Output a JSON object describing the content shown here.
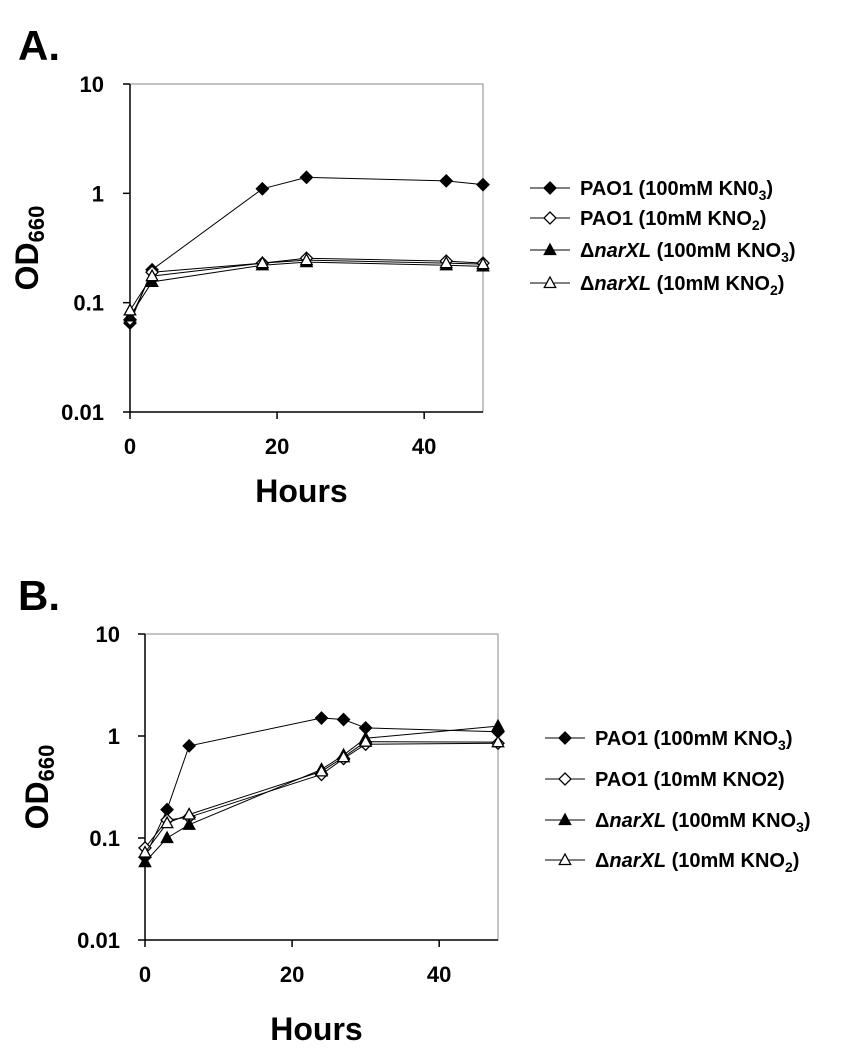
{
  "chart_data": [
    {
      "panel_label": "A.",
      "type": "line",
      "ylabel": "OD",
      "ylabel_sub": "660",
      "xlabel": "Hours",
      "yscale": "log",
      "ylim": [
        0.01,
        10
      ],
      "xlim": [
        0,
        48
      ],
      "yticks": [
        "10",
        "1",
        "0.1",
        "0.01"
      ],
      "xticks": [
        "0",
        "20",
        "40"
      ],
      "grid": false,
      "legend_position": "right",
      "series": [
        {
          "name": "PAO1 (100mM KN0",
          "name_sub": "3",
          "name_tail": ")",
          "italic_part": "",
          "marker": "diamond-filled",
          "x": [
            0,
            3,
            18,
            24,
            43,
            48
          ],
          "y": [
            0.065,
            0.2,
            1.1,
            1.4,
            1.3,
            1.2
          ]
        },
        {
          "name": "PAO1 (10mM KNO",
          "name_sub": "2",
          "name_tail": ")",
          "italic_part": "",
          "marker": "diamond-open",
          "x": [
            0,
            3,
            18,
            24,
            43,
            48
          ],
          "y": [
            0.07,
            0.19,
            0.23,
            0.255,
            0.24,
            0.23
          ]
        },
        {
          "name": "Δ",
          "italic_part": "narXL",
          "name_rest": " (100mM KNO",
          "name_sub": "3",
          "name_tail": ")",
          "marker": "triangle-filled",
          "x": [
            0,
            3,
            18,
            24,
            43,
            48
          ],
          "y": [
            0.075,
            0.155,
            0.22,
            0.235,
            0.22,
            0.215
          ]
        },
        {
          "name": "Δ",
          "italic_part": "narXL",
          "name_rest": " (10mM KNO",
          "name_sub": "2",
          "name_tail": ")",
          "marker": "triangle-open",
          "x": [
            0,
            3,
            18,
            24,
            43,
            48
          ],
          "y": [
            0.085,
            0.175,
            0.23,
            0.245,
            0.23,
            0.225
          ]
        }
      ]
    },
    {
      "panel_label": "B.",
      "type": "line",
      "ylabel": "OD",
      "ylabel_sub": "660",
      "xlabel": "Hours",
      "yscale": "log",
      "ylim": [
        0.01,
        10
      ],
      "xlim": [
        0,
        48
      ],
      "yticks": [
        "10",
        "1",
        "0.1",
        "0.01"
      ],
      "xticks": [
        "0",
        "20",
        "40"
      ],
      "grid": false,
      "legend_position": "right",
      "series": [
        {
          "name": "PAO1 (100mM KNO",
          "name_sub": "3",
          "name_tail": ")",
          "italic_part": "",
          "marker": "diamond-filled",
          "x": [
            0,
            3,
            6,
            24,
            27,
            30,
            48
          ],
          "y": [
            0.065,
            0.19,
            0.8,
            1.5,
            1.45,
            1.2,
            1.1
          ]
        },
        {
          "name": "PAO1 (10mM KNO2)",
          "name_sub": "",
          "name_tail": "",
          "italic_part": "",
          "marker": "diamond-open",
          "x": [
            0,
            3,
            6,
            24,
            27,
            30,
            48
          ],
          "y": [
            0.08,
            0.15,
            0.16,
            0.42,
            0.6,
            0.83,
            0.85
          ]
        },
        {
          "name": "Δ",
          "italic_part": "narXL",
          "name_rest": " (100mM KNO",
          "name_sub": "3",
          "name_tail": ")",
          "marker": "triangle-filled",
          "x": [
            0,
            3,
            6,
            24,
            27,
            30,
            48
          ],
          "y": [
            0.058,
            0.1,
            0.135,
            0.47,
            0.65,
            0.95,
            1.25
          ]
        },
        {
          "name": "Δ",
          "italic_part": "narXL",
          "name_rest": " (10mM KNO",
          "name_sub": "2",
          "name_tail": ")",
          "marker": "triangle-open",
          "x": [
            0,
            3,
            6,
            24,
            27,
            30,
            48
          ],
          "y": [
            0.072,
            0.14,
            0.17,
            0.45,
            0.62,
            0.88,
            0.87
          ]
        }
      ]
    }
  ]
}
